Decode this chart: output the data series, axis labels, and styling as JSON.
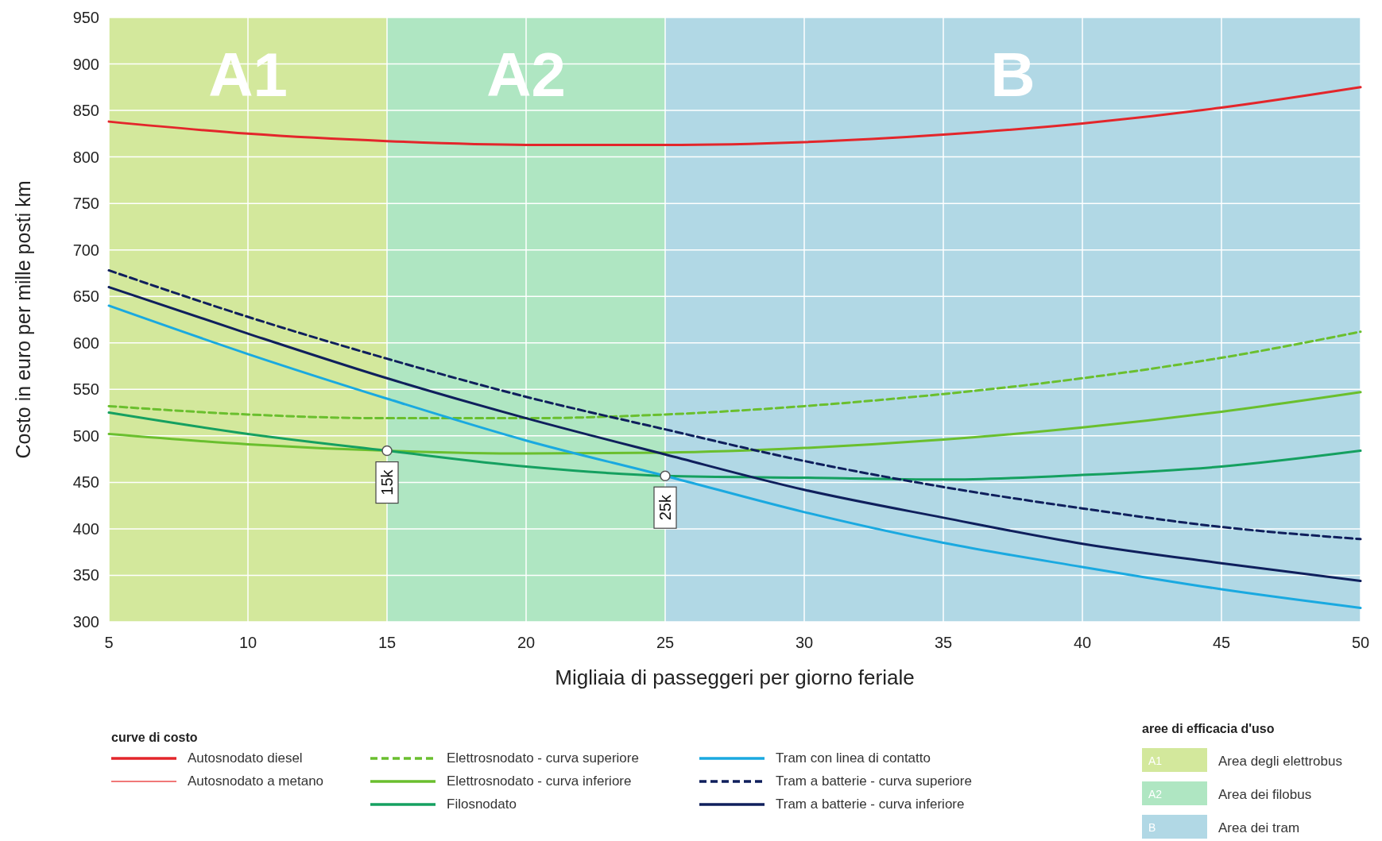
{
  "chart_data": {
    "type": "line",
    "xlabel": "Migliaia di passeggeri per giorno feriale",
    "ylabel": "Costo in euro per mille posti km",
    "legend_title": "curve di costo",
    "x": [
      5,
      10,
      15,
      20,
      25,
      30,
      35,
      40,
      45,
      50
    ],
    "series": [
      {
        "name": "Autosnodato diesel",
        "color": "#e3262b",
        "values": [
          838,
          825,
          817,
          813,
          813,
          816,
          824,
          836,
          853,
          875
        ]
      },
      {
        "name": "Autosnodato a metano",
        "color": "#f07878",
        "values": [
          null,
          null,
          null,
          null,
          null,
          null,
          null,
          null,
          null,
          null
        ]
      },
      {
        "name": "Elettrosnodato - curva superiore",
        "color": "#6abf2e",
        "line_style": "dashed",
        "values": [
          532,
          523,
          519,
          519,
          523,
          532,
          545,
          562,
          584,
          612
        ]
      },
      {
        "name": "Elettrosnodato - curva inferiore",
        "color": "#6abf2e",
        "values": [
          502,
          491,
          484,
          481,
          482,
          487,
          496,
          509,
          526,
          547
        ]
      },
      {
        "name": "Filosnodato",
        "color": "#15a060",
        "values": [
          525,
          502,
          484,
          467,
          457,
          455,
          453,
          458,
          467,
          484
        ]
      },
      {
        "name": "Tram con linea di contatto",
        "color": "#1aa9e0",
        "values": [
          640,
          588,
          540,
          495,
          457,
          418,
          385,
          359,
          335,
          315
        ]
      },
      {
        "name": "Tram a batterie - curva superiore",
        "color": "#0f1f5c",
        "line_style": "dashed",
        "values": [
          678,
          628,
          583,
          542,
          507,
          473,
          445,
          422,
          402,
          389
        ]
      },
      {
        "name": "Tram a batterie - curva inferiore",
        "color": "#0f1f5c",
        "values": [
          660,
          610,
          562,
          519,
          480,
          442,
          412,
          384,
          363,
          344
        ]
      }
    ],
    "xlim": [
      5,
      50
    ],
    "ylim": [
      300,
      950
    ],
    "xticks": [
      5,
      10,
      15,
      20,
      25,
      30,
      35,
      40,
      45,
      50
    ],
    "yticks": [
      300,
      350,
      400,
      450,
      500,
      550,
      600,
      650,
      700,
      750,
      800,
      850,
      900,
      950
    ],
    "grid": true,
    "legend": "bottom",
    "marker": "none",
    "line_style": "solid",
    "bands": [
      {
        "axis": "x",
        "from": 5,
        "to": 15,
        "label": "A1",
        "color": "#d3e89c"
      },
      {
        "axis": "x",
        "from": 15,
        "to": 25,
        "label": "A2",
        "color": "#afe6c2"
      },
      {
        "axis": "x",
        "from": 25,
        "to": 50,
        "label": "B",
        "color": "#b1d8e5"
      }
    ],
    "annotations": [
      {
        "text": "15k",
        "x": 15,
        "y": 484
      },
      {
        "text": "25k",
        "x": 25,
        "y": 457
      },
      "aree di efficacia d'uso",
      "Area degli elettrobus",
      "Area dei filobus",
      "Area dei tram"
    ]
  }
}
